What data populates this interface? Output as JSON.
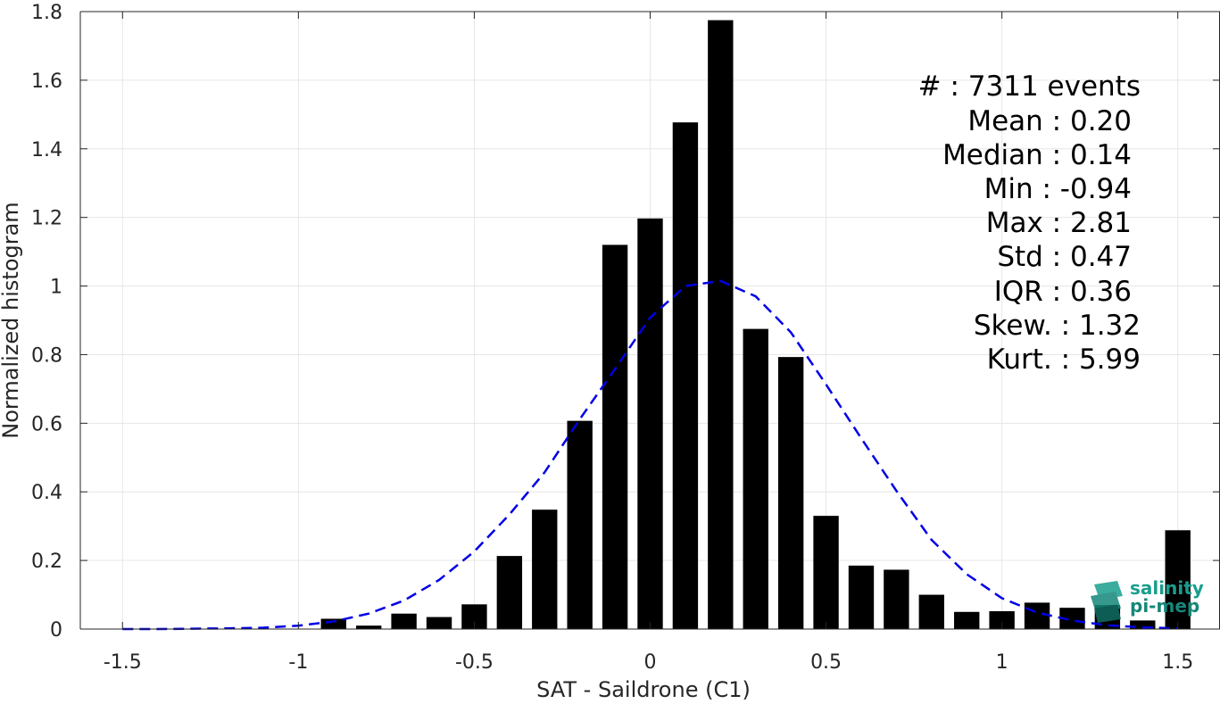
{
  "chart_data": {
    "type": "bar",
    "xlabel": "SAT - Saildrone (C1)",
    "ylabel": "Normalized histogram",
    "xlim": [
      -1.62,
      1.62
    ],
    "ylim": [
      0,
      1.8
    ],
    "x_ticks": [
      -1.5,
      -1,
      -0.5,
      0,
      0.5,
      1,
      1.5
    ],
    "x_tick_labels": [
      "-1.5",
      "-1",
      "-0.5",
      "0",
      "0.5",
      "1",
      "1.5"
    ],
    "y_ticks": [
      0,
      0.2,
      0.4,
      0.6,
      0.8,
      1,
      1.2,
      1.4,
      1.6,
      1.8
    ],
    "y_tick_labels": [
      "0",
      "0.2",
      "0.4",
      "0.6",
      "0.8",
      "1",
      "1.2",
      "1.4",
      "1.6",
      "1.8"
    ],
    "grid": true,
    "bar_color": "#000000",
    "series": [
      {
        "type": "bar",
        "x": [
          -0.9,
          -0.8,
          -0.7,
          -0.6,
          -0.5,
          -0.4,
          -0.3,
          -0.2,
          -0.1,
          0.0,
          0.1,
          0.2,
          0.3,
          0.4,
          0.5,
          0.6,
          0.7,
          0.8,
          0.9,
          1.0,
          1.1,
          1.2,
          1.3,
          1.4,
          1.5
        ],
        "values": [
          0.03,
          0.01,
          0.045,
          0.035,
          0.072,
          0.213,
          0.348,
          0.607,
          1.12,
          1.197,
          1.477,
          1.775,
          0.875,
          0.793,
          0.33,
          0.185,
          0.173,
          0.1,
          0.05,
          0.052,
          0.077,
          0.062,
          0.07,
          0.025,
          0.288
        ]
      },
      {
        "type": "line",
        "style": "dashed",
        "color": "#0000e6",
        "x": [
          -1.5,
          -1.4,
          -1.3,
          -1.2,
          -1.1,
          -1.0,
          -0.9,
          -0.8,
          -0.7,
          -0.6,
          -0.5,
          -0.4,
          -0.3,
          -0.2,
          -0.1,
          0.0,
          0.1,
          0.2,
          0.3,
          0.4,
          0.5,
          0.6,
          0.7,
          0.8,
          0.9,
          1.0,
          1.1,
          1.2,
          1.3,
          1.4,
          1.5
        ],
        "values": [
          0.0,
          0.0,
          0.001,
          0.002,
          0.004,
          0.01,
          0.022,
          0.045,
          0.083,
          0.143,
          0.226,
          0.334,
          0.457,
          0.612,
          0.758,
          0.908,
          1.0,
          1.015,
          0.97,
          0.865,
          0.713,
          0.556,
          0.403,
          0.26,
          0.16,
          0.09,
          0.048,
          0.025,
          0.011,
          0.005,
          0.002
        ]
      }
    ]
  },
  "stats": [
    {
      "label": "#  : 7311 events"
    },
    {
      "label": "Mean : 0.20"
    },
    {
      "label": "Median : 0.14"
    },
    {
      "label": "Min : -0.94"
    },
    {
      "label": "Max : 2.81"
    },
    {
      "label": "Std : 0.47"
    },
    {
      "label": "IQR : 0.36"
    },
    {
      "label": "Skew. : 1.32"
    },
    {
      "label": "Kurt. : 5.99"
    }
  ],
  "logo": {
    "line1": "salinity",
    "line2": "pi-mep",
    "color": "#1a9e8c"
  }
}
